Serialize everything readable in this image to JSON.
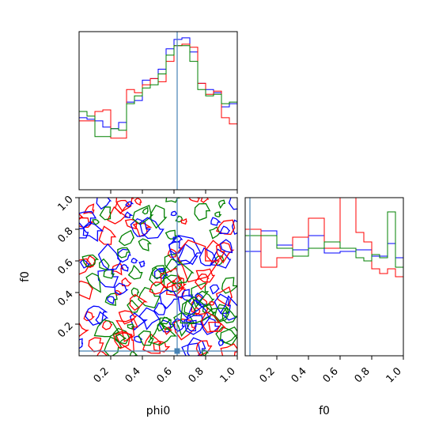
{
  "chart_data": {
    "type": "corner",
    "parameters": [
      "phi0",
      "f0"
    ],
    "truths": {
      "phi0": 0.62,
      "f0": 0.03
    },
    "series_colors": [
      "#0000ff",
      "#ff0000",
      "#008000"
    ],
    "truth_color": "#4682b4",
    "panels": [
      {
        "panel": "hist-phi0",
        "type": "histogram",
        "xlim": [
          0,
          1
        ],
        "bins": 20,
        "series": [
          {
            "color": "#0000ff",
            "values": [
              0.46,
              0.45,
              0.44,
              0.4,
              0.39,
              0.43,
              0.56,
              0.57,
              0.7,
              0.71,
              0.77,
              0.9,
              0.96,
              0.97,
              0.88,
              0.68,
              0.64,
              0.62,
              0.53,
              0.55
            ]
          },
          {
            "color": "#ff0000",
            "values": [
              0.44,
              0.44,
              0.5,
              0.51,
              0.33,
              0.33,
              0.64,
              0.62,
              0.67,
              0.71,
              0.69,
              0.82,
              0.92,
              0.93,
              0.91,
              0.68,
              0.61,
              0.63,
              0.46,
              0.42
            ]
          },
          {
            "color": "#008000",
            "values": [
              0.5,
              0.47,
              0.34,
              0.34,
              0.39,
              0.38,
              0.55,
              0.6,
              0.65,
              0.67,
              0.74,
              0.86,
              0.92,
              0.92,
              0.82,
              0.64,
              0.6,
              0.61,
              0.55,
              0.56
            ]
          }
        ]
      },
      {
        "panel": "contour-f0-vs-phi0",
        "type": "contour",
        "xlabel": "phi0",
        "ylabel": "f0",
        "xlim": [
          0,
          1
        ],
        "ylim": [
          0,
          1
        ],
        "xticks": [
          "0.2",
          "0.4",
          "0.6",
          "0.8",
          "1.0"
        ],
        "yticks": [
          "0.2",
          "0.4",
          "0.6",
          "0.8",
          "1.0"
        ]
      },
      {
        "panel": "hist-f0",
        "type": "histogram",
        "xlabel": "f0",
        "xlim": [
          0,
          1
        ],
        "bins": 20,
        "xticks": [
          "0.2",
          "0.4",
          "0.6",
          "0.8",
          "1.0"
        ],
        "series": [
          {
            "color": "#0000ff",
            "values": [
              0.66,
              0.66,
              0.79,
              0.79,
              0.7,
              0.7,
              0.67,
              0.67,
              0.76,
              0.76,
              0.65,
              0.65,
              0.66,
              0.66,
              0.67,
              0.67,
              0.63,
              0.63,
              0.71,
              0.62
            ]
          },
          {
            "color": "#ff0000",
            "values": [
              0.8,
              0.8,
              0.56,
              0.56,
              0.62,
              0.62,
              0.75,
              0.75,
              0.87,
              0.87,
              0.68,
              0.68,
              1.0,
              1.0,
              0.78,
              0.72,
              0.55,
              0.52,
              0.55,
              0.5
            ]
          },
          {
            "color": "#008000",
            "values": [
              0.76,
              0.76,
              0.76,
              0.76,
              0.68,
              0.68,
              0.63,
              0.63,
              0.68,
              0.68,
              0.72,
              0.72,
              0.68,
              0.68,
              0.62,
              0.6,
              0.64,
              0.62,
              0.91,
              0.56
            ]
          }
        ]
      }
    ]
  }
}
